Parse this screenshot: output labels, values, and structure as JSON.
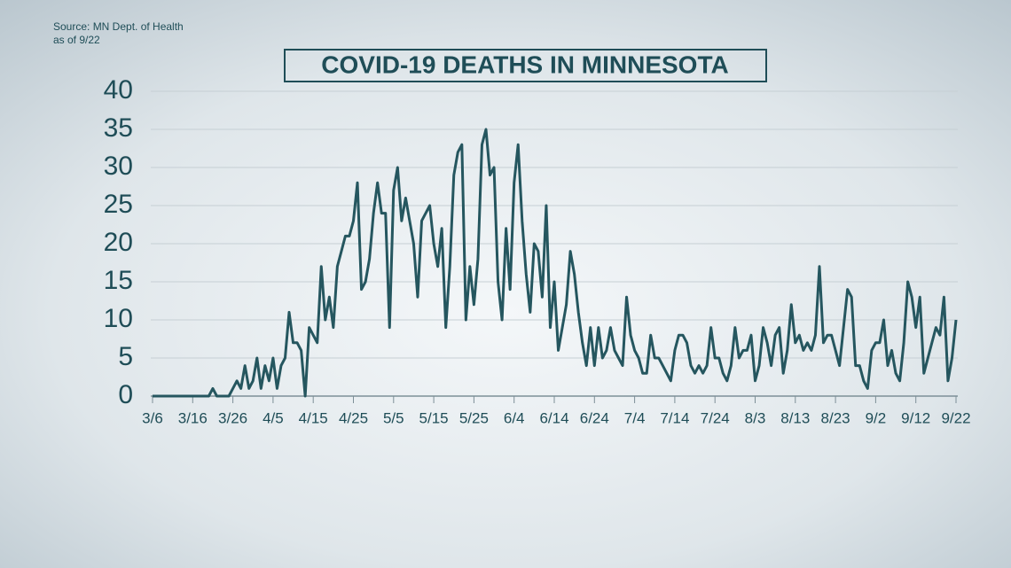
{
  "chart_data": {
    "type": "line",
    "title": "COVID-19 DEATHS IN MINNESOTA",
    "source": "Source: MN Dept. of Health",
    "date_note": "as of 9/22",
    "categories": [
      "3/6",
      null,
      null,
      null,
      null,
      null,
      null,
      null,
      null,
      null,
      "3/16",
      null,
      null,
      null,
      null,
      null,
      null,
      null,
      null,
      null,
      "3/26",
      null,
      null,
      null,
      null,
      null,
      null,
      null,
      null,
      null,
      "4/5",
      null,
      null,
      null,
      null,
      null,
      null,
      null,
      null,
      null,
      "4/15",
      null,
      null,
      null,
      null,
      null,
      null,
      null,
      null,
      null,
      "4/25",
      null,
      null,
      null,
      null,
      null,
      null,
      null,
      null,
      null,
      "5/5",
      null,
      null,
      null,
      null,
      null,
      null,
      null,
      null,
      null,
      "5/15",
      null,
      null,
      null,
      null,
      null,
      null,
      null,
      null,
      null,
      "5/25",
      null,
      null,
      null,
      null,
      null,
      null,
      null,
      null,
      null,
      "6/4",
      null,
      null,
      null,
      null,
      null,
      null,
      null,
      null,
      null,
      "6/14",
      null,
      null,
      null,
      null,
      null,
      null,
      null,
      null,
      null,
      "6/24",
      null,
      null,
      null,
      null,
      null,
      null,
      null,
      null,
      null,
      "7/4",
      null,
      null,
      null,
      null,
      null,
      null,
      null,
      null,
      null,
      "7/14",
      null,
      null,
      null,
      null,
      null,
      null,
      null,
      null,
      null,
      "7/24",
      null,
      null,
      null,
      null,
      null,
      null,
      null,
      null,
      null,
      "8/3",
      null,
      null,
      null,
      null,
      null,
      null,
      null,
      null,
      null,
      "8/13",
      null,
      null,
      null,
      null,
      null,
      null,
      null,
      null,
      null,
      "8/23",
      null,
      null,
      null,
      null,
      null,
      null,
      null,
      null,
      null,
      "9/2",
      null,
      null,
      null,
      null,
      null,
      null,
      null,
      null,
      null,
      "9/12",
      null,
      null,
      null,
      null,
      null,
      null,
      null,
      null,
      null,
      "9/22"
    ],
    "series": [
      {
        "name": null,
        "color": "#25565f",
        "values": [
          0,
          0,
          0,
          0,
          0,
          0,
          0,
          0,
          0,
          0,
          0,
          0,
          0,
          0,
          0,
          1,
          0,
          0,
          0,
          0,
          1,
          2,
          1,
          4,
          1,
          2,
          5,
          1,
          4,
          2,
          5,
          1,
          4,
          5,
          11,
          7,
          7,
          6,
          0,
          9,
          8,
          7,
          17,
          10,
          13,
          9,
          17,
          19,
          21,
          21,
          23,
          28,
          14,
          15,
          18,
          24,
          28,
          24,
          24,
          9,
          27,
          30,
          23,
          26,
          23,
          20,
          13,
          23,
          24,
          25,
          20,
          17,
          22,
          9,
          17,
          29,
          32,
          33,
          10,
          17,
          12,
          18,
          33,
          35,
          29,
          30,
          15,
          10,
          22,
          14,
          28,
          33,
          23,
          16,
          11,
          20,
          19,
          13,
          25,
          9,
          15,
          6,
          9,
          12,
          19,
          16,
          11,
          7,
          4,
          9,
          4,
          9,
          5,
          6,
          9,
          6,
          5,
          4,
          13,
          8,
          6,
          5,
          3,
          3,
          8,
          5,
          5,
          4,
          3,
          2,
          6,
          8,
          8,
          7,
          4,
          3,
          4,
          3,
          4,
          9,
          5,
          5,
          3,
          2,
          4,
          9,
          5,
          6,
          6,
          8,
          2,
          4,
          9,
          7,
          4,
          8,
          9,
          3,
          6,
          12,
          7,
          8,
          6,
          7,
          6,
          8,
          17,
          7,
          8,
          8,
          6,
          4,
          9,
          14,
          13,
          4,
          4,
          2,
          1,
          6,
          7,
          7,
          10,
          4,
          6,
          3,
          2,
          7,
          15,
          13,
          9,
          13,
          3,
          5,
          7,
          9,
          8,
          13,
          2,
          5,
          10
        ]
      }
    ],
    "ylim": [
      0,
      40
    ],
    "yticks": [
      0,
      5,
      10,
      15,
      20,
      25,
      30,
      35,
      40
    ],
    "grid": true
  }
}
